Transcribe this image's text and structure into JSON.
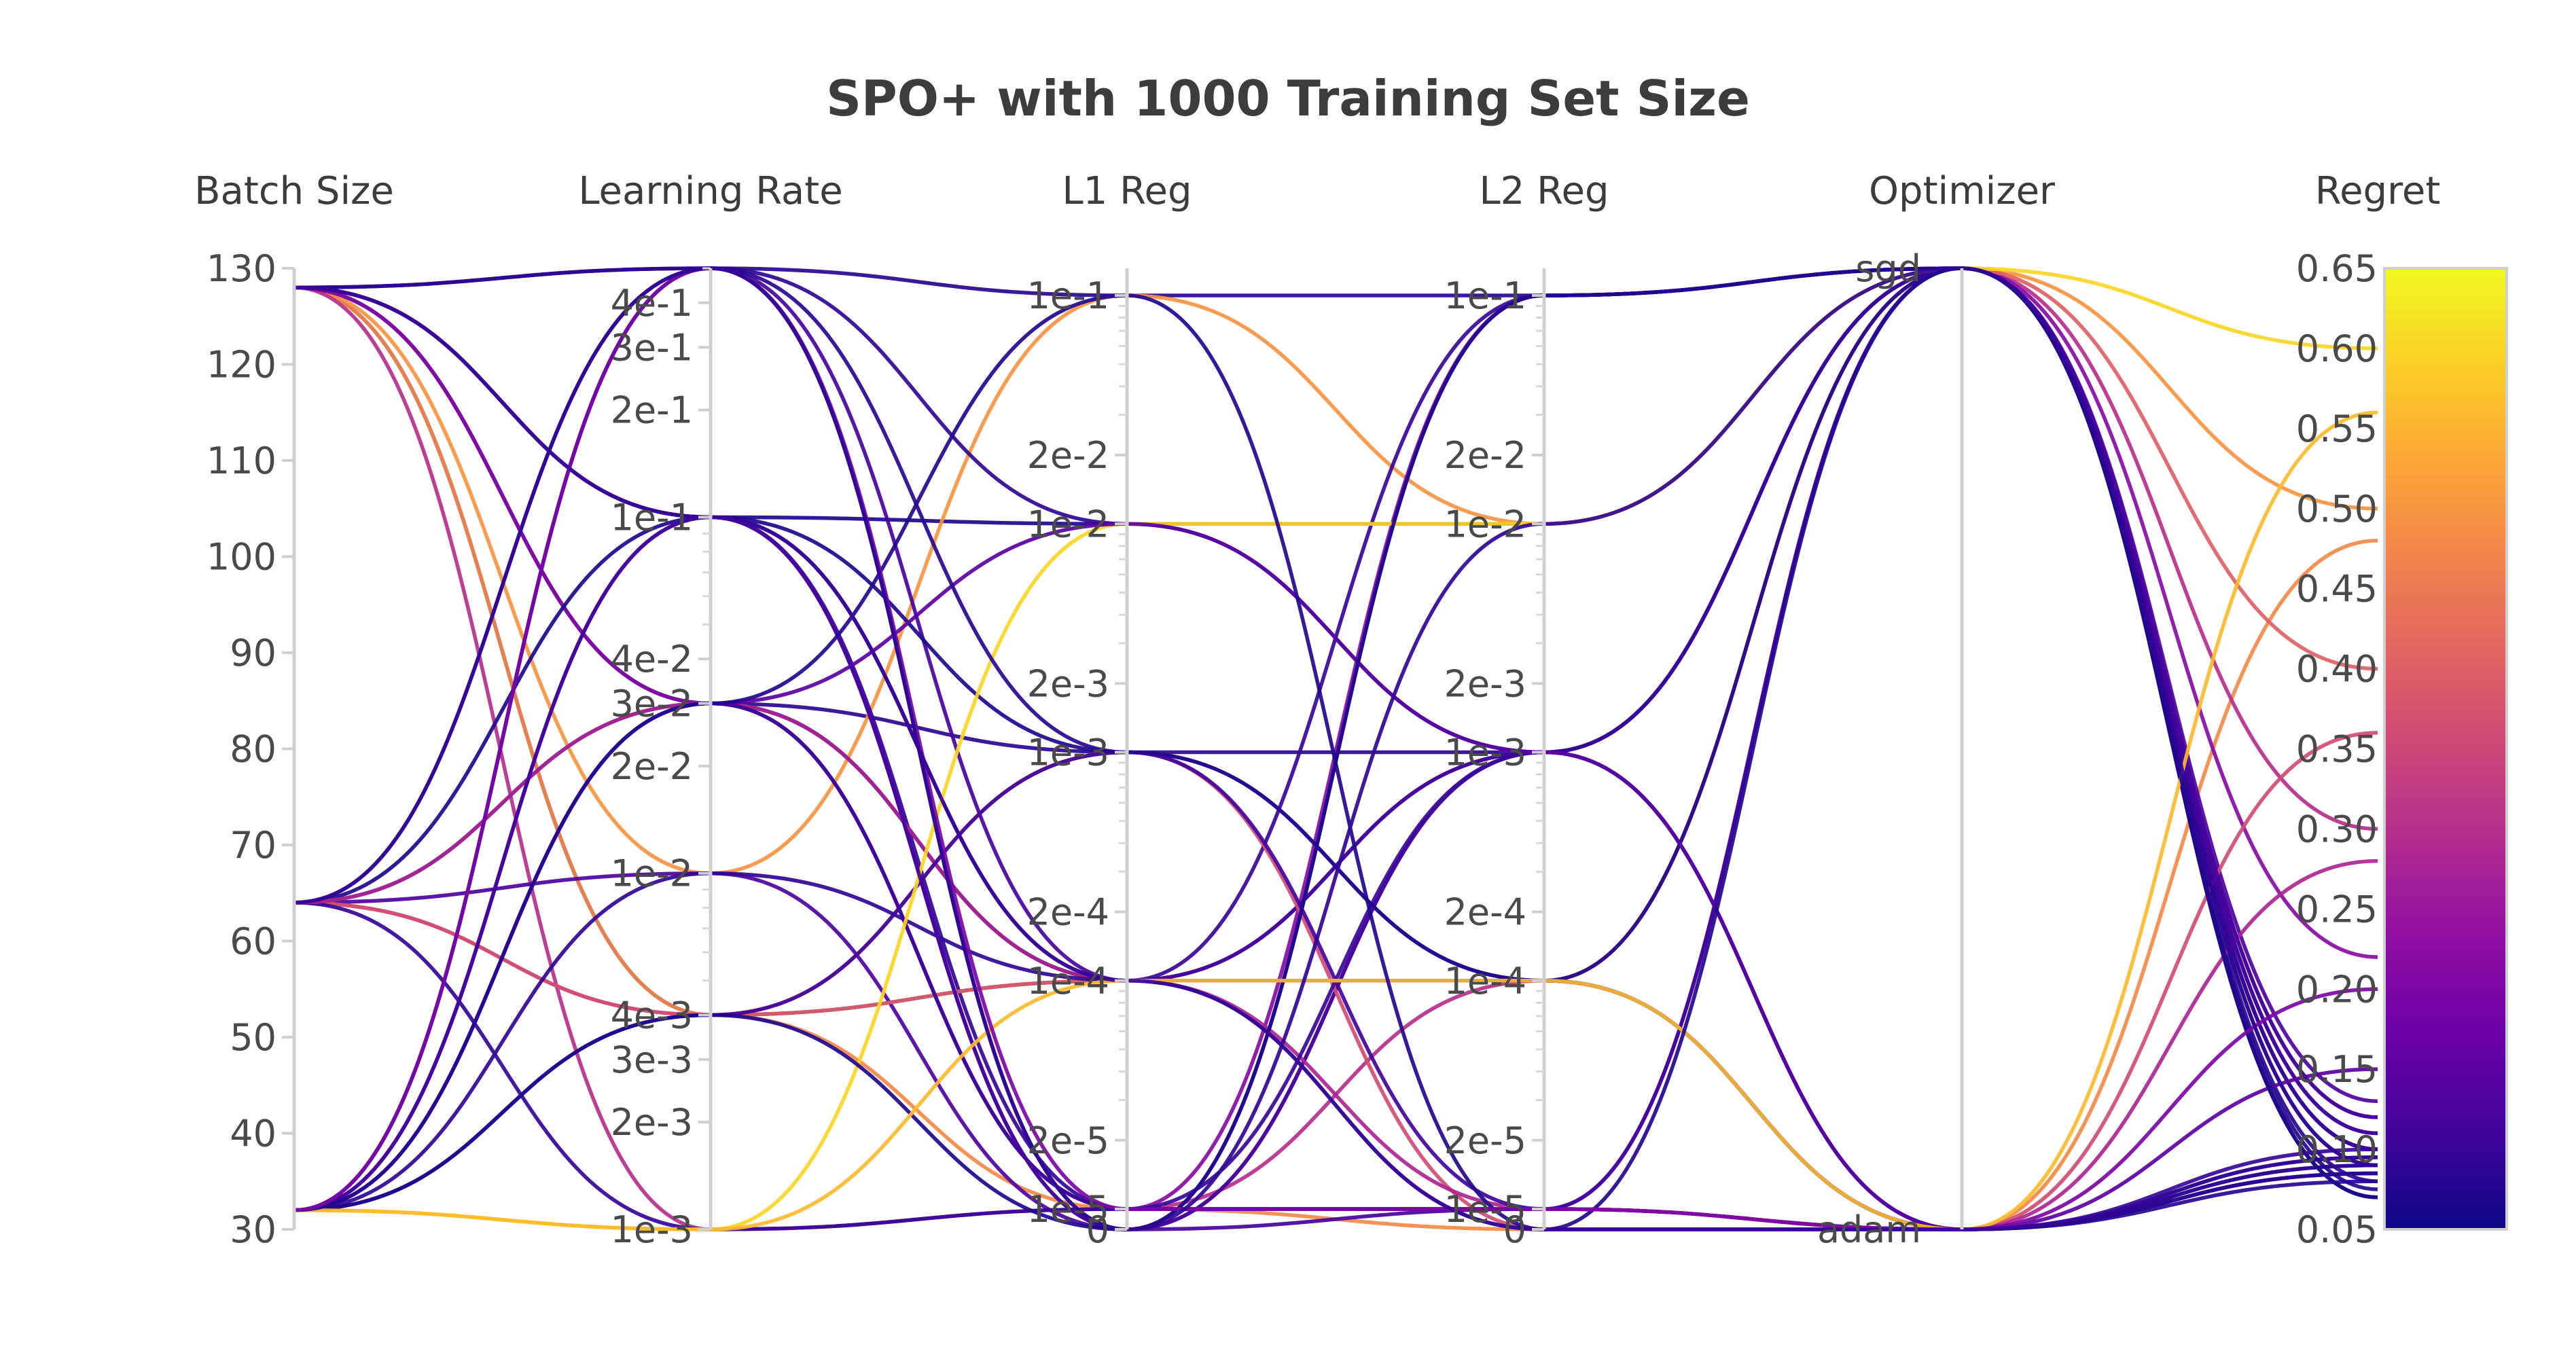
{
  "chart_data": {
    "type": "parallel_coordinates",
    "title": "SPO+ with 1000 Training Set Size",
    "colorscale": "plasma",
    "color_range": [
      0.05,
      0.65
    ],
    "colorbar_ticks": [
      "0.65",
      "0.60",
      "0.55",
      "0.50",
      "0.45",
      "0.40",
      "0.35",
      "0.30",
      "0.25",
      "0.20",
      "0.15",
      "0.10",
      "0.05"
    ],
    "axes": [
      {
        "key": "batch",
        "label": "Batch Size",
        "range": [
          30,
          130
        ],
        "ticks": [
          "130",
          "120",
          "110",
          "100",
          "90",
          "80",
          "70",
          "60",
          "50",
          "40",
          "30"
        ]
      },
      {
        "key": "lr",
        "label": "Learning Rate",
        "scale": "log",
        "levels": [
          0.001,
          0.004,
          0.01,
          0.03,
          0.1,
          0.5
        ],
        "ticks": [
          "4e-1",
          "3e-1",
          "2e-1",
          "1e-1",
          "4e-2",
          "3e-2",
          "2e-2",
          "1e-2",
          "4e-3",
          "3e-3",
          "2e-3",
          "1e-3"
        ]
      },
      {
        "key": "l1",
        "label": "L1 Reg",
        "scale": "log-with-zero",
        "ticks": [
          "1e-1",
          "2e-2",
          "1e-2",
          "2e-3",
          "1e-3",
          "2e-4",
          "1e-4",
          "2e-5",
          "1e-5",
          "0"
        ]
      },
      {
        "key": "l2",
        "label": "L2 Reg",
        "scale": "log-with-zero",
        "ticks": [
          "1e-1",
          "2e-2",
          "1e-2",
          "2e-3",
          "1e-3",
          "2e-4",
          "1e-4",
          "2e-5",
          "1e-5",
          "0"
        ]
      },
      {
        "key": "opt",
        "label": "Optimizer",
        "categories": [
          "sgd",
          "adam"
        ]
      },
      {
        "key": "regret",
        "label": "Regret",
        "range": [
          0.05,
          0.65
        ],
        "ticks": [
          "0.65",
          "0.60",
          "0.55",
          "0.50",
          "0.45",
          "0.40",
          "0.35",
          "0.30",
          "0.25",
          "0.20",
          "0.15",
          "0.10",
          "0.05"
        ]
      }
    ],
    "rows": [
      {
        "batch": 128,
        "lr": 0.5,
        "l1": 0.1,
        "l2": 0.1,
        "opt": "sgd",
        "regret": 0.08
      },
      {
        "batch": 128,
        "lr": 0.1,
        "l1": 0.01,
        "l2": 0.01,
        "opt": "sgd",
        "regret": 0.07
      },
      {
        "batch": 128,
        "lr": 0.03,
        "l1": 0.001,
        "l2": 0.001,
        "opt": "adam",
        "regret": 0.085
      },
      {
        "batch": 128,
        "lr": 0.004,
        "l1": 0.0001,
        "l2": 0.0001,
        "opt": "adam",
        "regret": 0.09
      },
      {
        "batch": 128,
        "lr": 0.01,
        "l1": 0.1,
        "l2": 0.01,
        "opt": "sgd",
        "regret": 0.5
      },
      {
        "batch": 128,
        "lr": 0.004,
        "l1": 1e-05,
        "l2": 0,
        "opt": "adam",
        "regret": 0.48
      },
      {
        "batch": 128,
        "lr": 0.001,
        "l1": 1e-05,
        "l2": 0.0001,
        "opt": "sgd",
        "regret": 0.3
      },
      {
        "batch": 128,
        "lr": 0.1,
        "l1": 1e-05,
        "l2": 1e-05,
        "opt": "adam",
        "regret": 0.095
      },
      {
        "batch": 128,
        "lr": 0.03,
        "l1": 0.0001,
        "l2": 0.001,
        "opt": "sgd",
        "regret": 0.1
      },
      {
        "batch": 128,
        "lr": 0.1,
        "l1": 0,
        "l2": 0.1,
        "opt": "sgd",
        "regret": 0.11
      },
      {
        "batch": 128,
        "lr": 0.5,
        "l1": 0,
        "l2": 0.001,
        "opt": "adam",
        "regret": 0.085
      },
      {
        "batch": 128,
        "lr": 0.03,
        "l1": 1e-05,
        "l2": 0.1,
        "opt": "sgd",
        "regret": 0.22
      },
      {
        "batch": 64,
        "lr": 0.5,
        "l1": 0.0001,
        "l2": 0.001,
        "opt": "sgd",
        "regret": 0.12
      },
      {
        "batch": 64,
        "lr": 0.03,
        "l1": 0.0001,
        "l2": 0.1,
        "opt": "sgd",
        "regret": 0.1
      },
      {
        "batch": 64,
        "lr": 0.01,
        "l1": 0,
        "l2": 0.001,
        "opt": "sgd",
        "regret": 0.13
      },
      {
        "batch": 64,
        "lr": 0.004,
        "l1": 0.0001,
        "l2": 0.0001,
        "opt": "sgd",
        "regret": 0.4
      },
      {
        "batch": 64,
        "lr": 0.004,
        "l1": 0.001,
        "l2": 0,
        "opt": "adam",
        "regret": 0.36
      },
      {
        "batch": 64,
        "lr": 0.001,
        "l1": 1e-05,
        "l2": 1e-05,
        "opt": "adam",
        "regret": 0.095
      },
      {
        "batch": 64,
        "lr": 0.1,
        "l1": 0.001,
        "l2": 0.0001,
        "opt": "sgd",
        "regret": 0.07
      },
      {
        "batch": 64,
        "lr": 0.03,
        "l1": 0.0001,
        "l2": 1e-05,
        "opt": "adam",
        "regret": 0.28
      },
      {
        "batch": 32,
        "lr": 0.5,
        "l1": 0.01,
        "l2": 0.001,
        "opt": "sgd",
        "regret": 0.09
      },
      {
        "batch": 32,
        "lr": 0.1,
        "l1": 0.0001,
        "l2": 0.0001,
        "opt": "adam",
        "regret": 0.085
      },
      {
        "batch": 32,
        "lr": 0.03,
        "l1": 1e-05,
        "l2": 0.001,
        "opt": "sgd",
        "regret": 0.1
      },
      {
        "batch": 32,
        "lr": 0.01,
        "l1": 0.0001,
        "l2": 0,
        "opt": "adam",
        "regret": 0.09
      },
      {
        "batch": 32,
        "lr": 0.004,
        "l1": 0.001,
        "l2": 1e-05,
        "opt": "sgd",
        "regret": 0.11
      },
      {
        "batch": 32,
        "lr": 0.001,
        "l1": 0.01,
        "l2": 0.01,
        "opt": "sgd",
        "regret": 0.6
      },
      {
        "batch": 32,
        "lr": 0.03,
        "l1": 0.01,
        "l2": 0.001,
        "opt": "adam",
        "regret": 0.15
      },
      {
        "batch": 32,
        "lr": 0.1,
        "l1": 0,
        "l2": 1e-05,
        "opt": "sgd",
        "regret": 0.12
      },
      {
        "batch": 32,
        "lr": 0.5,
        "l1": 0.001,
        "l2": 0.0001,
        "opt": "adam",
        "regret": 0.08
      },
      {
        "batch": 32,
        "lr": 0.004,
        "l1": 0,
        "l2": 0.1,
        "opt": "sgd",
        "regret": 0.07
      },
      {
        "batch": 32,
        "lr": 0.001,
        "l1": 0.0001,
        "l2": 0.0001,
        "opt": "adam",
        "regret": 0.56
      },
      {
        "batch": 32,
        "lr": 0.03,
        "l1": 0.1,
        "l2": 0,
        "opt": "sgd",
        "regret": 0.075
      },
      {
        "batch": 32,
        "lr": 0.5,
        "l1": 1e-05,
        "l2": 1e-05,
        "opt": "adam",
        "regret": 0.2
      },
      {
        "batch": 128,
        "lr": 0.1,
        "l1": 0.0001,
        "l2": 0,
        "opt": "adam",
        "regret": 0.1
      },
      {
        "batch": 64,
        "lr": 0.5,
        "l1": 0,
        "l2": 0.01,
        "opt": "sgd",
        "regret": 0.09
      }
    ]
  }
}
